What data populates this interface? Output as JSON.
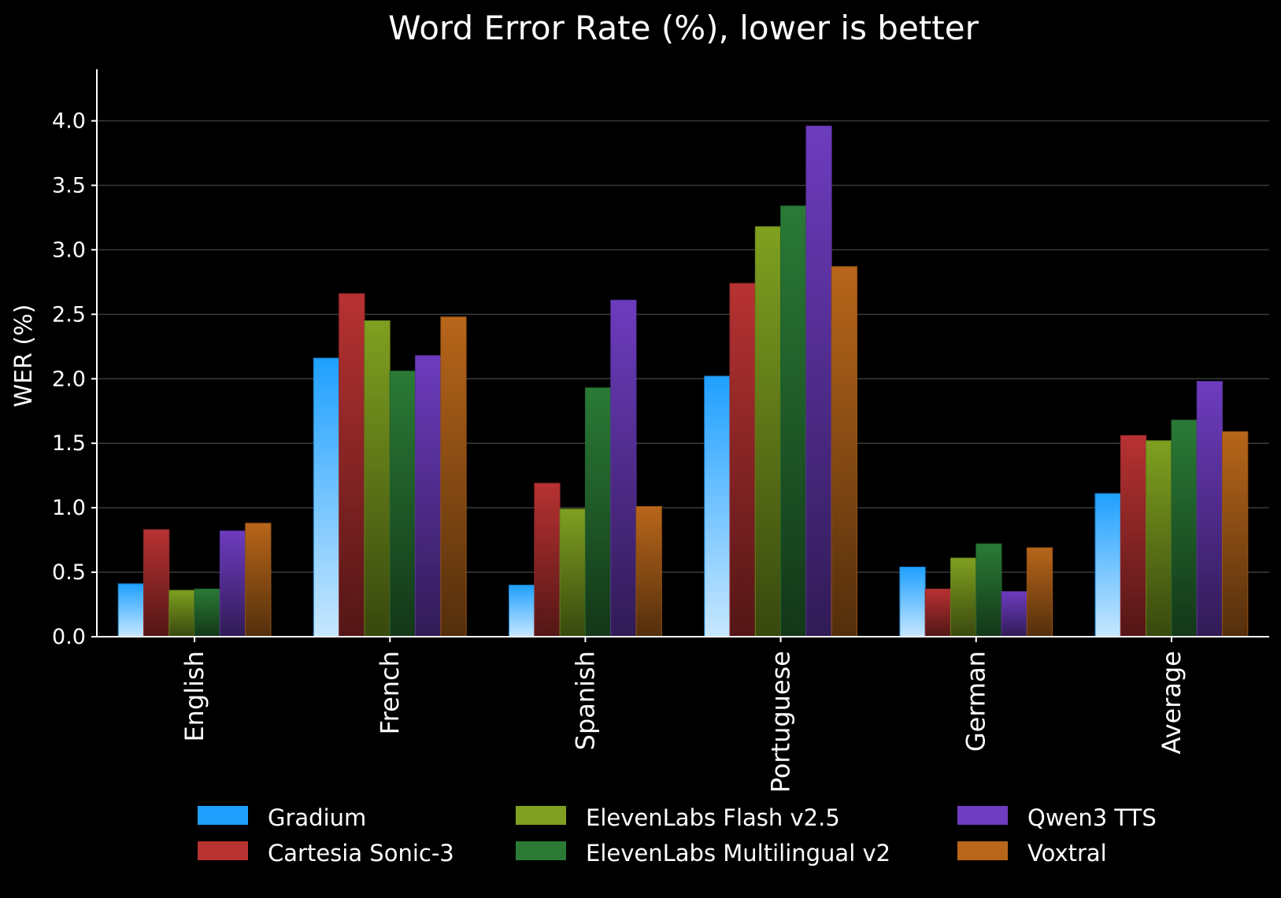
{
  "chart_data": {
    "type": "bar",
    "title": "Word Error Rate (%), lower is better",
    "xlabel": "",
    "ylabel": "WER (%)",
    "ylim": [
      0,
      4.4
    ],
    "yticks": [
      "0.0",
      "0.5",
      "1.0",
      "1.5",
      "2.0",
      "2.5",
      "3.0",
      "3.5",
      "4.0"
    ],
    "grid": "horizontal",
    "legend_placement": "bottom",
    "categories": [
      "English",
      "French",
      "Spanish",
      "Portuguese",
      "German",
      "Average"
    ],
    "series": [
      {
        "name": "Gradium",
        "color": "#1fa0ff",
        "values": [
          0.41,
          2.16,
          0.4,
          2.02,
          0.54,
          1.11
        ]
      },
      {
        "name": "Cartesia Sonic-3",
        "color": "#b83232",
        "values": [
          0.83,
          2.66,
          1.19,
          2.74,
          0.37,
          1.56
        ]
      },
      {
        "name": "ElevenLabs Flash v2.5",
        "color": "#7fa020",
        "values": [
          0.36,
          2.45,
          0.99,
          3.18,
          0.61,
          1.52
        ]
      },
      {
        "name": "ElevenLabs Multilingual v2",
        "color": "#2a7a36",
        "values": [
          0.37,
          2.06,
          1.93,
          3.34,
          0.72,
          1.68
        ]
      },
      {
        "name": "Qwen3 TTS",
        "color": "#6d3cbf",
        "values": [
          0.82,
          2.18,
          2.61,
          3.96,
          0.35,
          1.98
        ]
      },
      {
        "name": "Voxtral",
        "color": "#b8661a",
        "values": [
          0.88,
          2.48,
          1.01,
          2.87,
          0.69,
          1.59
        ]
      }
    ]
  }
}
